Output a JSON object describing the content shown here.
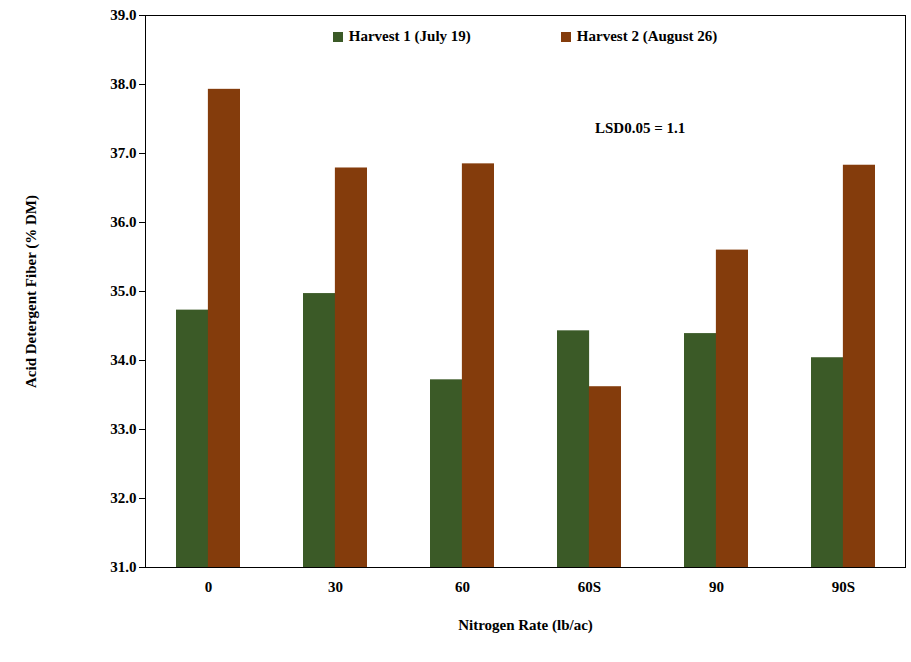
{
  "chart_data": {
    "type": "bar",
    "x_label": "Nitrogen Rate (lb/ac)",
    "y_label": "Acid Detergent Fiber (% DM)",
    "categories": [
      "0",
      "30",
      "60",
      "60S",
      "90",
      "90S"
    ],
    "series": [
      {
        "name": "Harvest 1 (July 19)",
        "color": "#3b5a27",
        "values": [
          34.73,
          34.97,
          33.72,
          34.43,
          34.39,
          34.04
        ]
      },
      {
        "name": "Harvest 2 (August 26)",
        "color": "#843c0c",
        "values": [
          37.93,
          36.79,
          36.85,
          33.62,
          35.6,
          36.83
        ]
      }
    ],
    "ylim": [
      31,
      39
    ],
    "yticks": [
      {
        "value": 31,
        "label": "31.0"
      },
      {
        "value": 32,
        "label": "32.0"
      },
      {
        "value": 33,
        "label": "33.0"
      },
      {
        "value": 34,
        "label": "34.0"
      },
      {
        "value": 35,
        "label": "35.0"
      },
      {
        "value": 36,
        "label": "36.0"
      },
      {
        "value": 37,
        "label": "37.0"
      },
      {
        "value": 38,
        "label": "38.0"
      },
      {
        "value": 39,
        "label": "39.0"
      }
    ],
    "annotations": [
      "LSD0.05 = 1.1"
    ],
    "legend": "top",
    "grid": false
  }
}
